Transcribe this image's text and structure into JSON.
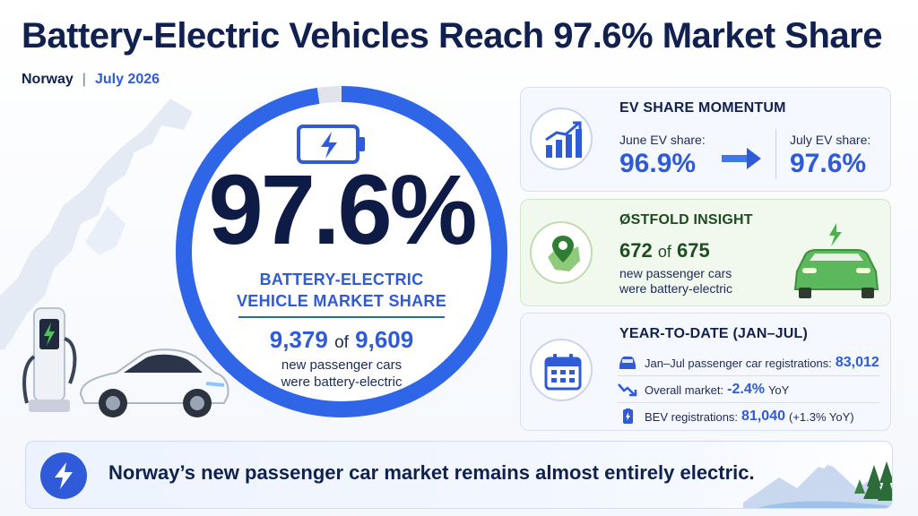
{
  "header": {
    "title": "Battery-Electric Vehicles Reach 97.6% Market Share",
    "country": "Norway",
    "separator": "|",
    "date": "July 2026"
  },
  "hero": {
    "percent": "97.6%",
    "percent_value": 97.6,
    "label_line1": "BATTERY-ELECTRIC",
    "label_line2": "VEHICLE MARKET SHARE",
    "count_bev": "9,379",
    "count_of": "of",
    "count_total": "9,609",
    "desc_line1": "new passenger cars",
    "desc_line2": "were battery-electric"
  },
  "momentum": {
    "heading": "EV SHARE MOMENTUM",
    "june_label": "June EV share:",
    "june_value": "96.9%",
    "july_label": "July EV share:",
    "july_value": "97.6%"
  },
  "ostfold": {
    "heading": "ØSTFOLD INSIGHT",
    "count_bev": "672",
    "count_of": "of",
    "count_total": "675",
    "desc_line1": "new passenger cars",
    "desc_line2": "were battery-electric"
  },
  "ytd": {
    "heading": "YEAR-TO-DATE (JAN–JUL)",
    "rows": [
      {
        "label": "Jan–Jul passenger car registrations:",
        "value": "83,012",
        "yoy": "",
        "icon": "car-icon"
      },
      {
        "label": "Overall market:",
        "value": "-2.4%",
        "yoy": "YoY",
        "icon": "trend-down-icon"
      },
      {
        "label": "BEV registrations:",
        "value": "81,040",
        "yoy": "(+1.3% YoY)",
        "icon": "battery-icon"
      }
    ]
  },
  "banner": {
    "text": "Norway’s new passenger car market remains almost entirely electric."
  },
  "colors": {
    "accent": "#2f5bd8",
    "navy": "#10204f",
    "green": "#4caf50"
  }
}
